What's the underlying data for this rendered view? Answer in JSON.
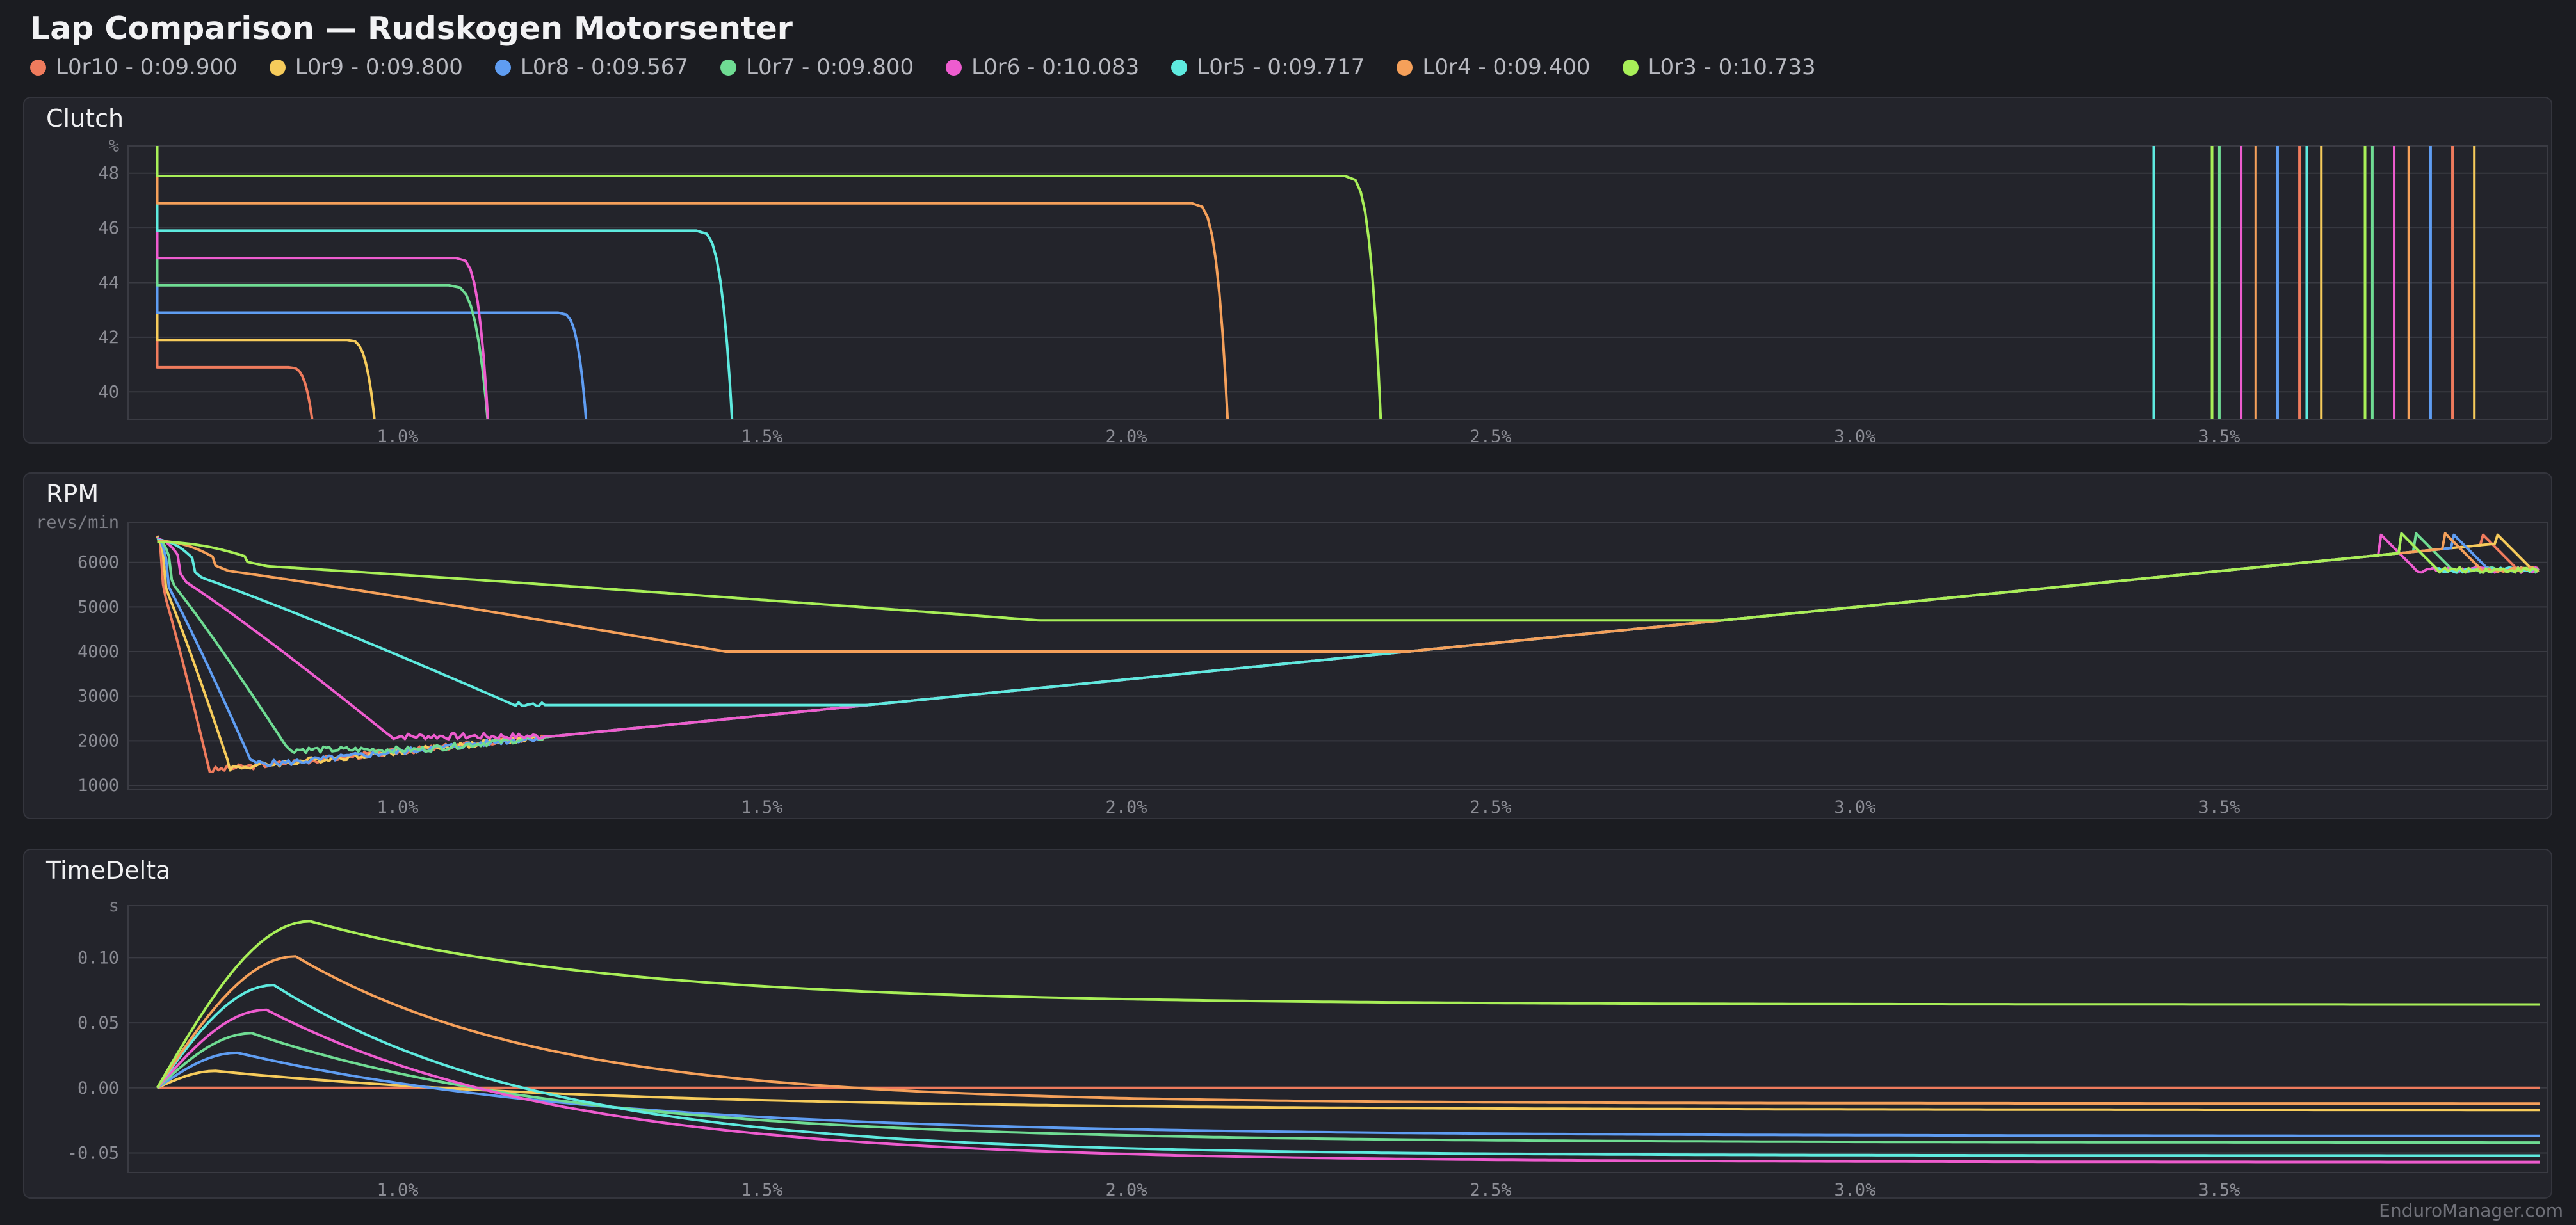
{
  "title": "Lap Comparison — Rudskogen Motorsenter",
  "laps": [
    {
      "label": "L0r10 - 0:09.900",
      "color": "#ef7b5d"
    },
    {
      "label": "L0r9 - 0:09.800",
      "color": "#f6cb5b"
    },
    {
      "label": "L0r8 - 0:09.567",
      "color": "#5f9df2"
    },
    {
      "label": "L0r7 - 0:09.800",
      "color": "#6fdc93"
    },
    {
      "label": "L0r6 - 0:10.083",
      "color": "#ee5ccf"
    },
    {
      "label": "L0r5 - 0:09.717",
      "color": "#5eeadf"
    },
    {
      "label": "L0r4 - 0:09.400",
      "color": "#f5a05a"
    },
    {
      "label": "L0r3 - 0:10.733",
      "color": "#a8ef58"
    }
  ],
  "panels": [
    {
      "title": "Clutch",
      "unit": "%"
    },
    {
      "title": "RPM",
      "unit": "revs/min"
    },
    {
      "title": "TimeDelta",
      "unit": "s"
    }
  ],
  "watermark": "EnduroManager.com",
  "chart_data": [
    {
      "type": "line",
      "title": "Clutch",
      "ylabel": "%",
      "xlim": [
        0.63,
        3.95
      ],
      "ylim": [
        39,
        49
      ],
      "x_ticks": [
        1.0,
        1.5,
        2.0,
        2.5,
        3.0,
        3.5
      ],
      "x_tick_labels": [
        "1.0%",
        "1.5%",
        "2.0%",
        "2.5%",
        "3.0%",
        "3.5%"
      ],
      "y_ticks": [
        40,
        42,
        44,
        46,
        48
      ],
      "y_tick_labels": [
        "40",
        "42",
        "44",
        "46",
        "48"
      ],
      "grid": true,
      "series": [
        {
          "name": "L0r10 - 0:09.900",
          "level": 40.9,
          "release_start": 0.85,
          "release_end": 0.885,
          "spike": 3.82
        },
        {
          "name": "L0r9 - 0:09.800",
          "level": 41.9,
          "release_start": 0.93,
          "release_end": 0.97,
          "spike": 3.85
        },
        {
          "name": "L0r8 - 0:09.567",
          "level": 42.9,
          "release_start": 1.22,
          "release_end": 1.26,
          "spike": 3.79
        },
        {
          "name": "L0r7 - 0:09.800",
          "level": 43.9,
          "release_start": 1.07,
          "release_end": 1.125,
          "spike": 3.71
        },
        {
          "name": "L0r6 - 0:10.083",
          "level": 44.9,
          "release_start": 1.08,
          "release_end": 1.125,
          "spike": 3.74
        },
        {
          "name": "L0r5 - 0:09.717",
          "level": 45.9,
          "release_start": 1.41,
          "release_end": 1.46,
          "spike": 3.62
        },
        {
          "name": "L0r4 - 0:09.400",
          "level": 46.9,
          "release_start": 2.09,
          "release_end": 2.14,
          "spike": 3.76
        },
        {
          "name": "L0r3 - 0:10.733",
          "level": 47.9,
          "release_start": 2.3,
          "release_end": 2.35,
          "spike": 3.7
        }
      ]
    },
    {
      "type": "line",
      "title": "RPM",
      "ylabel": "revs/min",
      "xlim": [
        0.63,
        3.95
      ],
      "ylim": [
        900,
        6900
      ],
      "x_ticks": [
        1.0,
        1.5,
        2.0,
        2.5,
        3.0,
        3.5
      ],
      "x_tick_labels": [
        "1.0%",
        "1.5%",
        "2.0%",
        "2.5%",
        "3.0%",
        "3.5%"
      ],
      "y_ticks": [
        1000,
        2000,
        3000,
        4000,
        5000,
        6000
      ],
      "y_tick_labels": [
        "1000",
        "2000",
        "3000",
        "4000",
        "5000",
        "6000"
      ],
      "grid": true,
      "series": [
        {
          "name": "L0r10 - 0:09.900",
          "rpm_floor": 1100,
          "floor_x": 0.745
        },
        {
          "name": "L0r9 - 0:09.800",
          "rpm_floor": 1400,
          "floor_x": 0.77
        },
        {
          "name": "L0r8 - 0:09.567",
          "rpm_floor": 1500,
          "floor_x": 0.8
        },
        {
          "name": "L0r7 - 0:09.800",
          "rpm_floor": 1800,
          "floor_x": 0.85
        },
        {
          "name": "L0r6 - 0:10.083",
          "rpm_floor": 2100,
          "floor_x": 0.99
        },
        {
          "name": "L0r5 - 0:09.717",
          "rpm_floor": 2800,
          "floor_x": 1.16
        },
        {
          "name": "L0r4 - 0:09.400",
          "rpm_floor": 4000,
          "floor_x": 1.45
        },
        {
          "name": "L0r3 - 0:10.733",
          "rpm_floor": 4700,
          "floor_x": 1.88
        }
      ]
    },
    {
      "type": "line",
      "title": "TimeDelta",
      "ylabel": "s",
      "xlim": [
        0.63,
        3.95
      ],
      "ylim": [
        -0.065,
        0.14
      ],
      "x_ticks": [
        1.0,
        1.5,
        2.0,
        2.5,
        3.0,
        3.5
      ],
      "x_tick_labels": [
        "1.0%",
        "1.5%",
        "2.0%",
        "2.5%",
        "3.0%",
        "3.5%"
      ],
      "y_ticks": [
        -0.05,
        0.0,
        0.05,
        0.1
      ],
      "y_tick_labels": [
        "-0.05",
        "0.00",
        "0.05",
        "0.10"
      ],
      "grid": true,
      "series": [
        {
          "name": "L0r10 - 0:09.900",
          "peak": 0.0,
          "peak_x": 0.75,
          "final": 0.0
        },
        {
          "name": "L0r9 - 0:09.800",
          "peak": 0.013,
          "peak_x": 0.75,
          "final": -0.017
        },
        {
          "name": "L0r8 - 0:09.567",
          "peak": 0.027,
          "peak_x": 0.78,
          "final": -0.037
        },
        {
          "name": "L0r7 - 0:09.800",
          "peak": 0.042,
          "peak_x": 0.8,
          "final": -0.042
        },
        {
          "name": "L0r6 - 0:10.083",
          "peak": 0.06,
          "peak_x": 0.82,
          "final": -0.057
        },
        {
          "name": "L0r5 - 0:09.717",
          "peak": 0.079,
          "peak_x": 0.83,
          "final": -0.052
        },
        {
          "name": "L0r4 - 0:09.400",
          "peak": 0.101,
          "peak_x": 0.86,
          "final": -0.012
        },
        {
          "name": "L0r3 - 0:10.733",
          "peak": 0.128,
          "peak_x": 0.88,
          "final": 0.064
        }
      ]
    }
  ]
}
